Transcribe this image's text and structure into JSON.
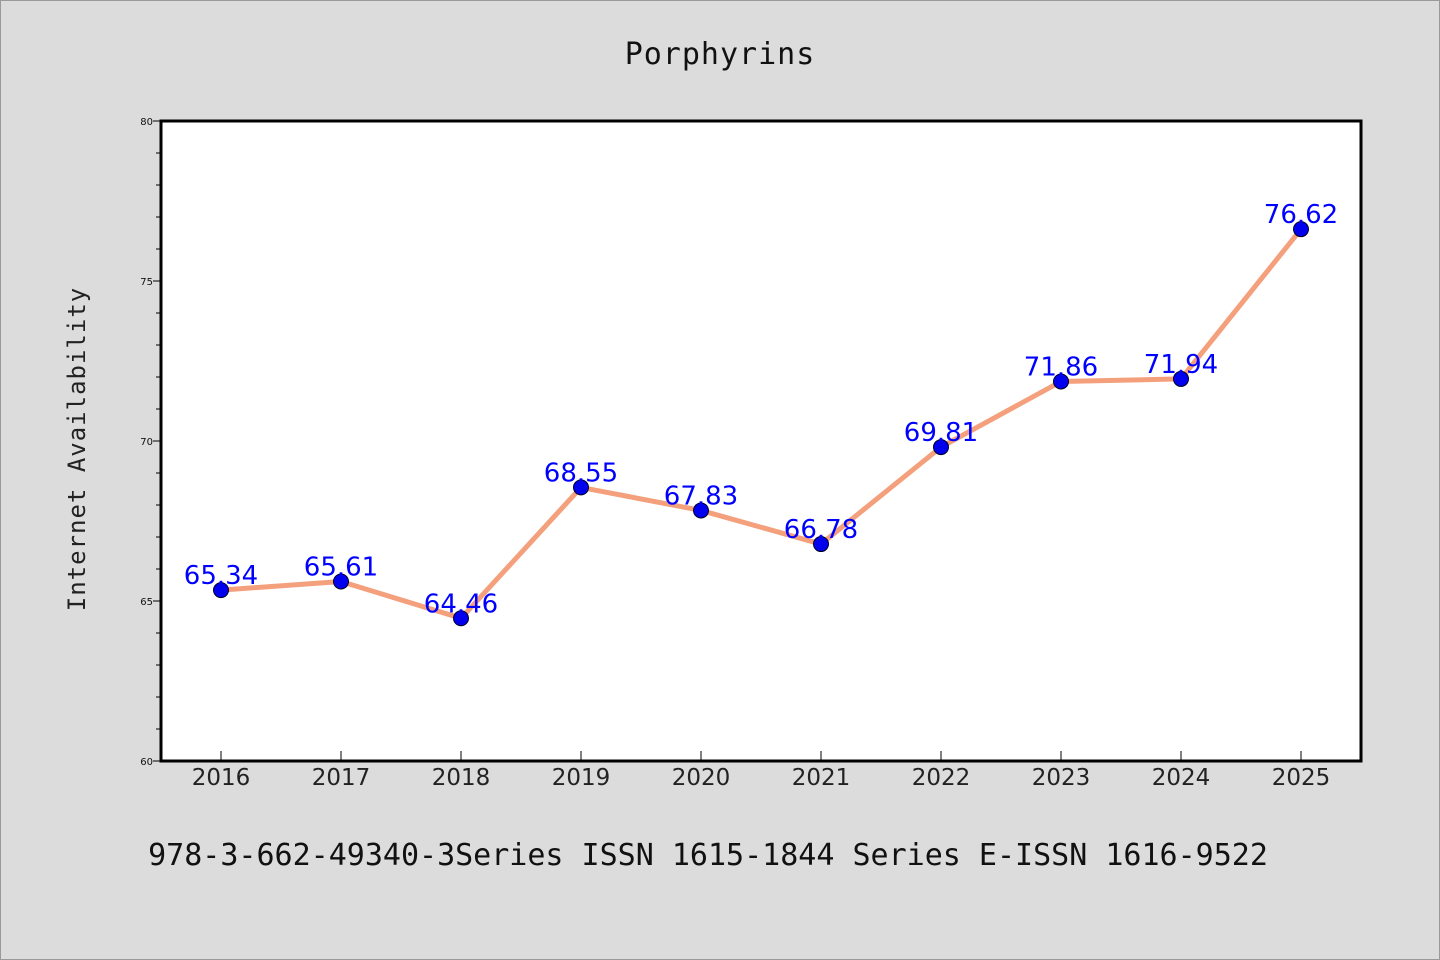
{
  "chart_data": {
    "type": "line",
    "title": "Porphyrins",
    "xlabel": "",
    "ylabel": "Internet Availability",
    "categories": [
      "2016",
      "2017",
      "2018",
      "2019",
      "2020",
      "2021",
      "2022",
      "2023",
      "2024",
      "2025"
    ],
    "series": [
      {
        "values": [
          65.34,
          65.61,
          64.46,
          68.55,
          67.83,
          66.78,
          69.81,
          71.86,
          71.94,
          76.62
        ],
        "labels": [
          "65.34",
          "65.61",
          "64.46",
          "68.55",
          "67.83",
          "66.78",
          "69.81",
          "71.86",
          "71.94",
          "76.62"
        ],
        "line_color": "#f4a07c",
        "marker_color": "#0000ee",
        "label_color": "#0000ff"
      }
    ],
    "ylim": [
      60,
      80
    ],
    "yticks": [
      "60",
      "65",
      "70",
      "75",
      "80"
    ],
    "grid": false,
    "legend": "none"
  },
  "footer": {
    "text": "978-3-662-49340-3Series ISSN 1615-1844 Series E-ISSN 1616-9522"
  },
  "colors": {
    "background": "#dcdcdc",
    "plot_area": "#ffffff",
    "axis": "#000000"
  }
}
